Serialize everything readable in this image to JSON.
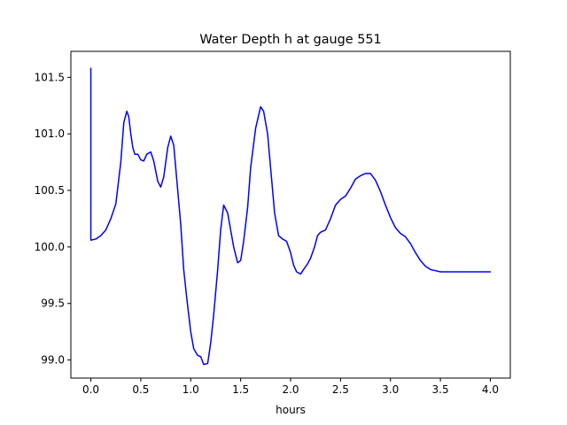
{
  "chart_data": {
    "type": "line",
    "title": "Water Depth h at gauge 551",
    "xlabel": "hours",
    "ylabel": "",
    "xlim": [
      -0.2,
      4.2
    ],
    "ylim": [
      98.84,
      101.73
    ],
    "xticks": [
      0.0,
      0.5,
      1.0,
      1.5,
      2.0,
      2.5,
      3.0,
      3.5,
      4.0
    ],
    "xtick_labels": [
      "0.0",
      "0.5",
      "1.0",
      "1.5",
      "2.0",
      "2.5",
      "3.0",
      "3.5",
      "4.0"
    ],
    "yticks": [
      99.0,
      99.5,
      100.0,
      100.5,
      101.0,
      101.5
    ],
    "ytick_labels": [
      "99.0",
      "99.5",
      "100.0",
      "100.5",
      "101.0",
      "101.5"
    ],
    "grid": false,
    "legend": "none",
    "series": [
      {
        "color": "#0000ff",
        "x": [
          0.0,
          0.0,
          0.0,
          0.05,
          0.1,
          0.15,
          0.2,
          0.25,
          0.3,
          0.33,
          0.36,
          0.38,
          0.4,
          0.42,
          0.44,
          0.47,
          0.5,
          0.53,
          0.56,
          0.6,
          0.63,
          0.67,
          0.7,
          0.73,
          0.77,
          0.8,
          0.83,
          0.86,
          0.9,
          0.93,
          0.96,
          1.0,
          1.03,
          1.07,
          1.1,
          1.13,
          1.17,
          1.2,
          1.23,
          1.27,
          1.3,
          1.33,
          1.37,
          1.4,
          1.43,
          1.47,
          1.5,
          1.53,
          1.57,
          1.6,
          1.65,
          1.7,
          1.73,
          1.77,
          1.8,
          1.84,
          1.88,
          1.92,
          1.96,
          2.0,
          2.03,
          2.06,
          2.1,
          2.13,
          2.17,
          2.2,
          2.24,
          2.27,
          2.3,
          2.35,
          2.4,
          2.45,
          2.5,
          2.55,
          2.6,
          2.65,
          2.7,
          2.75,
          2.8,
          2.85,
          2.9,
          2.95,
          3.0,
          3.05,
          3.1,
          3.15,
          3.2,
          3.25,
          3.3,
          3.35,
          3.4,
          3.45,
          3.5,
          3.55,
          3.6,
          3.65,
          3.7,
          3.75,
          3.8,
          3.85,
          3.9,
          3.95,
          4.0
        ],
        "y": [
          101.58,
          100.06,
          100.06,
          100.07,
          100.1,
          100.15,
          100.25,
          100.38,
          100.75,
          101.1,
          101.2,
          101.15,
          101.0,
          100.88,
          100.82,
          100.82,
          100.77,
          100.76,
          100.82,
          100.84,
          100.76,
          100.58,
          100.53,
          100.62,
          100.88,
          100.98,
          100.9,
          100.6,
          100.2,
          99.8,
          99.55,
          99.25,
          99.1,
          99.04,
          99.03,
          98.96,
          98.97,
          99.15,
          99.4,
          99.8,
          100.15,
          100.37,
          100.3,
          100.15,
          100.0,
          99.86,
          99.88,
          100.05,
          100.35,
          100.7,
          101.05,
          101.24,
          101.2,
          101.0,
          100.7,
          100.3,
          100.1,
          100.07,
          100.05,
          99.95,
          99.84,
          99.78,
          99.76,
          99.8,
          99.85,
          99.9,
          100.0,
          100.1,
          100.13,
          100.15,
          100.25,
          100.37,
          100.42,
          100.45,
          100.52,
          100.6,
          100.63,
          100.65,
          100.65,
          100.59,
          100.49,
          100.37,
          100.26,
          100.17,
          100.12,
          100.09,
          100.03,
          99.95,
          99.88,
          99.83,
          99.8,
          99.79,
          99.78,
          99.78,
          99.78,
          99.78,
          99.78,
          99.78,
          99.78,
          99.78,
          99.78,
          99.78,
          99.78
        ]
      }
    ]
  }
}
